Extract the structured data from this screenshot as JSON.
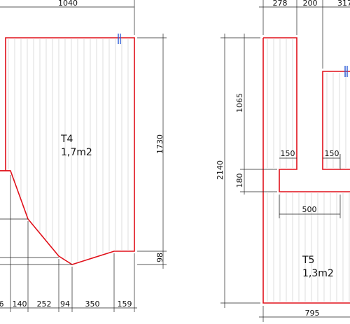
{
  "panels": {
    "t4": {
      "label": "T4",
      "area": "1,7m2",
      "dims": {
        "top": "1040",
        "right": "1730",
        "right_small": "98",
        "b0": "6",
        "b1": "140",
        "b2": "252",
        "b3": "94",
        "b4": "350",
        "b5": "159"
      }
    },
    "t5": {
      "label": "T5",
      "area": "1,3m2",
      "dims": {
        "top1": "278",
        "top2": "200",
        "top3": "317",
        "height": "2140",
        "upper": "1065",
        "lip": "180",
        "left_flange": "150",
        "right_flange": "150",
        "bar": "500",
        "bottom": "795"
      }
    }
  },
  "colors": {
    "outline": "#e0101a",
    "dimension": "#222222",
    "hatch": "#c9c9c9",
    "grip": "#2a5bd7"
  }
}
